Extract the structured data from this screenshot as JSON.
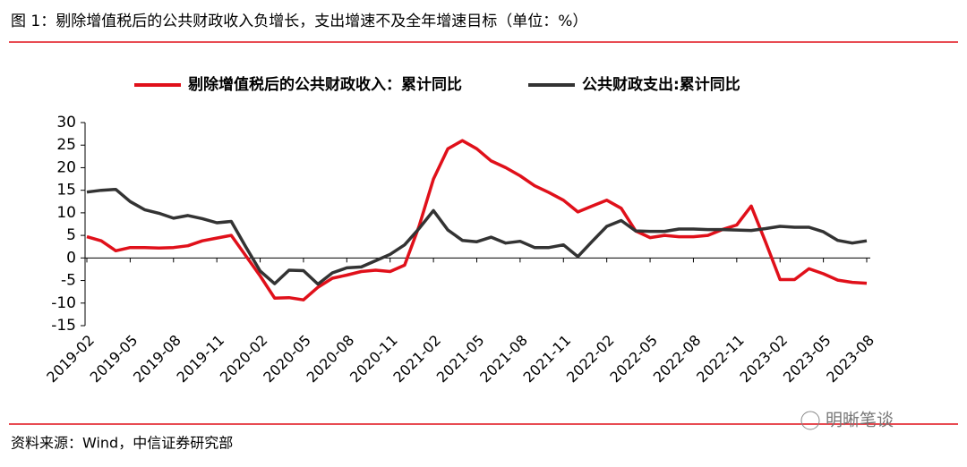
{
  "header": {
    "title": "图 1：剔除增值税后的公共财政收入负增长，支出增速不及全年增速目标（单位：%）"
  },
  "footer": {
    "source": "资料来源：Wind，中信证券研究部",
    "watermark": "明晰笔谈"
  },
  "chart_data": {
    "type": "line",
    "categories": [
      "2019-02",
      null,
      null,
      "2019-05",
      null,
      null,
      "2019-08",
      null,
      null,
      "2019-11",
      null,
      null,
      "2020-02",
      null,
      null,
      "2020-05",
      null,
      null,
      "2020-08",
      null,
      null,
      "2020-11",
      null,
      null,
      "2021-02",
      null,
      null,
      "2021-05",
      null,
      null,
      "2021-08",
      null,
      null,
      "2021-11",
      null,
      null,
      "2022-02",
      null,
      null,
      "2022-05",
      null,
      null,
      "2022-08",
      null,
      null,
      "2022-11",
      null,
      null,
      "2023-02",
      null,
      null,
      "2023-05",
      null,
      null,
      "2023-08"
    ],
    "series": [
      {
        "name": "剔除增值税后的公共财政收入：累计同比",
        "color": "#e0101a",
        "values": [
          4.7,
          3.8,
          1.6,
          2.3,
          2.3,
          2.2,
          2.3,
          2.7,
          3.8,
          4.4,
          5.0,
          0.5,
          -4,
          -8.9,
          -8.8,
          -9.3,
          -6.5,
          -4.5,
          -3.8,
          -3.0,
          -2.7,
          -3.0,
          -1.6,
          7,
          17.5,
          24.2,
          26,
          24.2,
          21.5,
          20,
          18.2,
          16,
          14.5,
          12.8,
          10.2,
          11.5,
          12.8,
          11,
          6,
          4.5,
          5,
          4.7,
          4.7,
          5,
          6.3,
          7.3,
          11.5,
          3.5,
          -4.8,
          -4.8,
          -2.4,
          -3.5,
          -4.9,
          -5.4,
          -5.6
        ]
      },
      {
        "name": "公共财政支出:累计同比",
        "color": "#333333",
        "values": [
          14.6,
          15,
          15.2,
          12.5,
          10.7,
          9.9,
          8.8,
          9.4,
          8.7,
          7.8,
          8.1,
          2.5,
          -2.9,
          -5.7,
          -2.7,
          -2.8,
          -5.8,
          -3.3,
          -2.2,
          -2.0,
          -0.6,
          0.8,
          2.9,
          6.5,
          10.5,
          6.2,
          3.9,
          3.6,
          4.6,
          3.3,
          3.7,
          2.3,
          2.3,
          2.9,
          0.3,
          3.7,
          7,
          8.3,
          6,
          5.9,
          5.9,
          6.4,
          6.4,
          6.3,
          6.3,
          6.2,
          6.1,
          6.5,
          7,
          6.8,
          6.8,
          5.8,
          3.9,
          3.3,
          3.8
        ]
      }
    ],
    "ylim": [
      -15,
      30
    ],
    "yticks": [
      -15,
      -10,
      -5,
      0,
      5,
      10,
      15,
      20,
      25,
      30
    ],
    "grid": false,
    "legend": "top"
  }
}
